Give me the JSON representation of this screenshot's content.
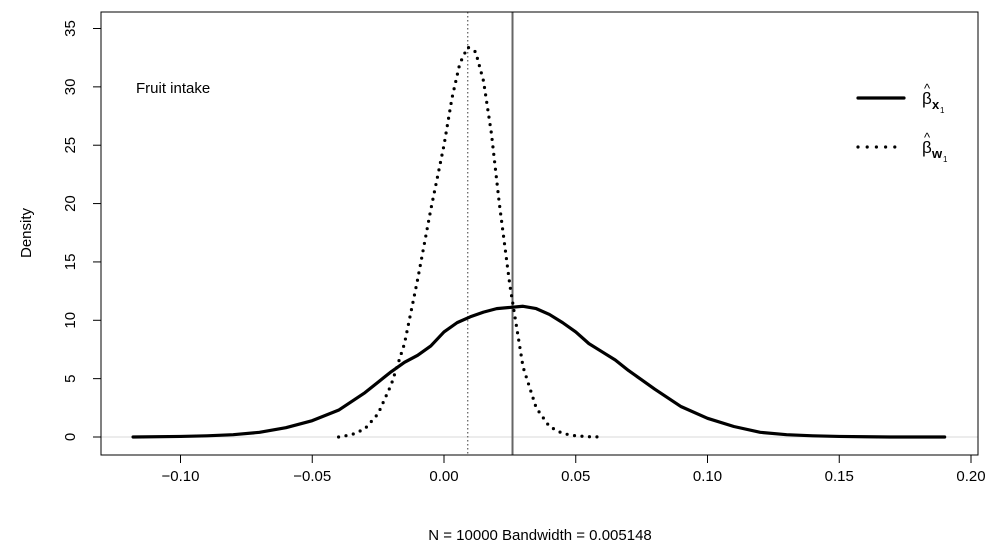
{
  "chart_data": {
    "type": "line",
    "title": "",
    "annotation": "Fruit intake",
    "xlabel": "N = 10000   Bandwidth = 0.005148",
    "ylabel": "Density",
    "xlim": [
      -0.12,
      0.2
    ],
    "ylim": [
      0,
      35
    ],
    "x_ticks": [
      -0.1,
      -0.05,
      0.0,
      0.05,
      0.1,
      0.15,
      0.2
    ],
    "x_tick_labels": [
      "−0.10",
      "−0.05",
      "0.00",
      "0.05",
      "0.10",
      "0.15",
      "0.20"
    ],
    "y_ticks": [
      0,
      5,
      10,
      15,
      20,
      25,
      30,
      35
    ],
    "y_tick_labels": [
      "0",
      "5",
      "10",
      "15",
      "20",
      "25",
      "30",
      "35"
    ],
    "grid": false,
    "legend_position": "top-right",
    "vertical_lines": [
      {
        "x": 0.009,
        "style": "dotted",
        "color": "#666666"
      },
      {
        "x": 0.026,
        "style": "solid",
        "color": "#666666"
      }
    ],
    "series": [
      {
        "name": "βx1",
        "legend_base": "β",
        "legend_hat": "^",
        "legend_sub": "x",
        "legend_subsub": "1",
        "style": "solid",
        "x": [
          -0.118,
          -0.1,
          -0.09,
          -0.08,
          -0.07,
          -0.06,
          -0.05,
          -0.04,
          -0.03,
          -0.02,
          -0.015,
          -0.01,
          -0.005,
          0.0,
          0.005,
          0.01,
          0.015,
          0.02,
          0.025,
          0.03,
          0.035,
          0.04,
          0.045,
          0.05,
          0.055,
          0.06,
          0.065,
          0.07,
          0.08,
          0.09,
          0.1,
          0.11,
          0.12,
          0.13,
          0.14,
          0.15,
          0.16,
          0.17,
          0.19
        ],
        "y": [
          0.0,
          0.05,
          0.1,
          0.2,
          0.4,
          0.8,
          1.4,
          2.3,
          3.8,
          5.6,
          6.4,
          7.0,
          7.8,
          9.0,
          9.8,
          10.3,
          10.7,
          11.0,
          11.1,
          11.2,
          11.0,
          10.5,
          9.8,
          9.0,
          8.0,
          7.3,
          6.6,
          5.7,
          4.1,
          2.6,
          1.6,
          0.9,
          0.4,
          0.2,
          0.1,
          0.05,
          0.02,
          0.0,
          0.0
        ]
      },
      {
        "name": "βw1",
        "legend_base": "β",
        "legend_hat": "^",
        "legend_sub": "w",
        "legend_subsub": "1",
        "style": "dotted",
        "x": [
          -0.04,
          -0.035,
          -0.03,
          -0.025,
          -0.02,
          -0.015,
          -0.01,
          -0.005,
          0.0,
          0.003,
          0.006,
          0.009,
          0.012,
          0.015,
          0.018,
          0.021,
          0.025,
          0.03,
          0.035,
          0.04,
          0.045,
          0.05,
          0.055,
          0.06
        ],
        "y": [
          0.0,
          0.2,
          0.7,
          2.0,
          4.5,
          8.0,
          13.5,
          19.5,
          25.0,
          29.0,
          32.0,
          33.4,
          33.0,
          30.5,
          26.0,
          20.0,
          13.0,
          6.0,
          2.5,
          0.9,
          0.3,
          0.1,
          0.02,
          0.0
        ]
      }
    ]
  }
}
